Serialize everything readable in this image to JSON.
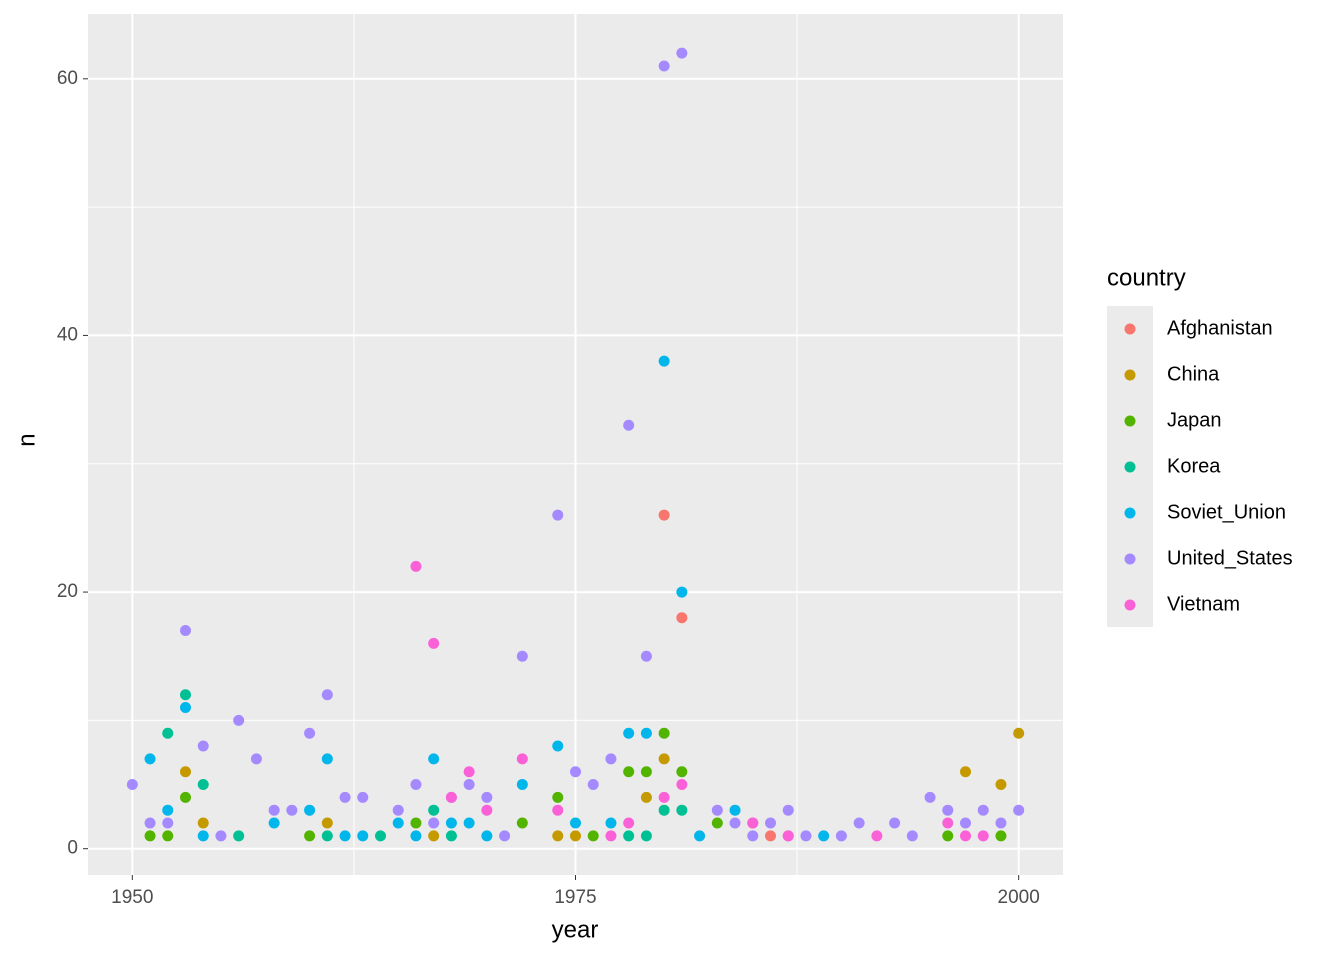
{
  "chart_data": {
    "type": "scatter",
    "xlabel": "year",
    "ylabel": "n",
    "legend_title": "country",
    "legend": "right",
    "grid": true,
    "xlim": [
      1947.5,
      2002.5
    ],
    "ylim": [
      -2.05,
      65.05
    ],
    "xticks": [
      1950,
      1975,
      2000
    ],
    "yticks": [
      0,
      20,
      40,
      60
    ],
    "minor_xticks": [
      1962.5,
      1987.5
    ],
    "minor_yticks": [
      10,
      30,
      50
    ],
    "series": [
      {
        "name": "Afghanistan",
        "color": "#f8766d",
        "x": [
          1980,
          1981,
          1985,
          1986,
          1987
        ],
        "values": [
          26,
          18,
          2,
          1,
          1
        ]
      },
      {
        "name": "China",
        "color": "#c49a00",
        "x": [
          1953,
          1954,
          1961,
          1967,
          1974,
          1975,
          1979,
          1980,
          1997,
          1999,
          2000
        ],
        "values": [
          6,
          2,
          2,
          1,
          1,
          1,
          4,
          7,
          6,
          5,
          9
        ]
      },
      {
        "name": "Japan",
        "color": "#53b400",
        "x": [
          1951,
          1952,
          1953,
          1960,
          1966,
          1972,
          1974,
          1976,
          1978,
          1979,
          1980,
          1981,
          1983,
          1996,
          1999
        ],
        "values": [
          1,
          1,
          4,
          1,
          2,
          2,
          4,
          1,
          6,
          6,
          9,
          6,
          2,
          1,
          1
        ]
      },
      {
        "name": "Korea",
        "color": "#00c094",
        "x": [
          1952,
          1953,
          1954,
          1956,
          1961,
          1964,
          1967,
          1968,
          1978,
          1979,
          1980,
          1981
        ],
        "values": [
          9,
          12,
          5,
          1,
          1,
          1,
          3,
          1,
          1,
          1,
          3,
          3
        ]
      },
      {
        "name": "Soviet_Union",
        "color": "#00b6eb",
        "x": [
          1951,
          1952,
          1953,
          1954,
          1958,
          1960,
          1961,
          1962,
          1963,
          1965,
          1966,
          1967,
          1968,
          1969,
          1970,
          1972,
          1974,
          1975,
          1977,
          1978,
          1979,
          1980,
          1981,
          1982,
          1984,
          1989
        ],
        "values": [
          7,
          3,
          11,
          1,
          2,
          3,
          7,
          1,
          1,
          2,
          1,
          7,
          2,
          2,
          1,
          5,
          8,
          2,
          2,
          9,
          9,
          38,
          20,
          1,
          3,
          1
        ]
      },
      {
        "name": "United_States",
        "color": "#a58aff",
        "x": [
          1950,
          1951,
          1952,
          1953,
          1954,
          1955,
          1956,
          1957,
          1958,
          1959,
          1960,
          1961,
          1962,
          1963,
          1965,
          1966,
          1967,
          1968,
          1969,
          1970,
          1971,
          1972,
          1974,
          1975,
          1976,
          1977,
          1978,
          1979,
          1980,
          1981,
          1983,
          1984,
          1985,
          1986,
          1987,
          1988,
          1990,
          1991,
          1993,
          1994,
          1995,
          1996,
          1997,
          1998,
          1999,
          2000
        ],
        "values": [
          5,
          2,
          2,
          17,
          8,
          1,
          10,
          7,
          3,
          3,
          9,
          12,
          4,
          4,
          3,
          5,
          2,
          4,
          5,
          4,
          1,
          15,
          26,
          6,
          5,
          7,
          33,
          15,
          61,
          62,
          3,
          2,
          1,
          2,
          3,
          1,
          1,
          2,
          2,
          1,
          4,
          3,
          2,
          3,
          2,
          3
        ]
      },
      {
        "name": "Vietnam",
        "color": "#fb61d7",
        "x": [
          1966,
          1967,
          1968,
          1969,
          1970,
          1972,
          1974,
          1977,
          1978,
          1980,
          1981,
          1985,
          1987,
          1992,
          1996,
          1997,
          1998
        ],
        "values": [
          22,
          16,
          4,
          6,
          3,
          7,
          3,
          1,
          2,
          4,
          5,
          2,
          1,
          1,
          2,
          1,
          1
        ]
      }
    ]
  }
}
